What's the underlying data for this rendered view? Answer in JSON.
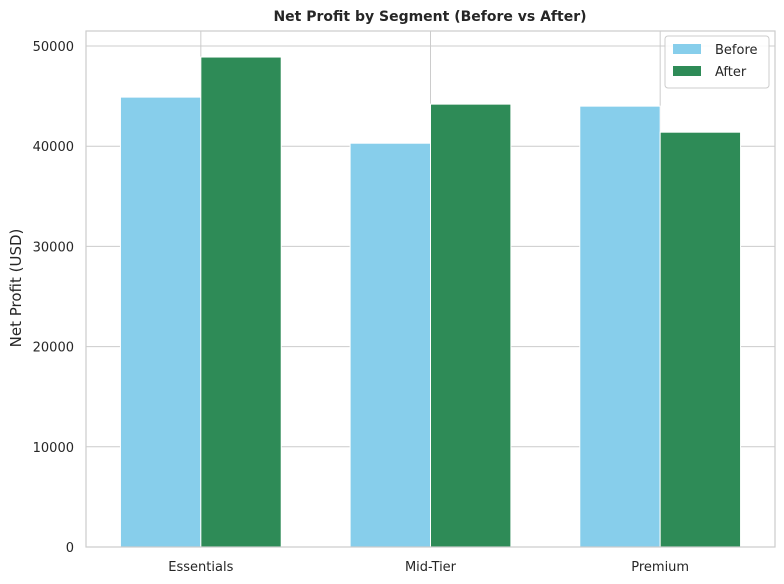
{
  "chart_data": {
    "type": "bar",
    "title": "Net Profit by Segment (Before vs After)",
    "xlabel": "",
    "ylabel": "Net Profit (USD)",
    "categories": [
      "Essentials",
      "Mid-Tier",
      "Premium"
    ],
    "series": [
      {
        "name": "Before",
        "values": [
          44900,
          40300,
          44000
        ],
        "color": "#87ceeb"
      },
      {
        "name": "After",
        "values": [
          48900,
          44200,
          41400
        ],
        "color": "#2e8b57"
      }
    ],
    "ylim": [
      0,
      51500
    ],
    "yticks": [
      "0",
      "10000",
      "20000",
      "30000",
      "40000",
      "50000"
    ],
    "grid": true,
    "legend_position": "top-right"
  }
}
